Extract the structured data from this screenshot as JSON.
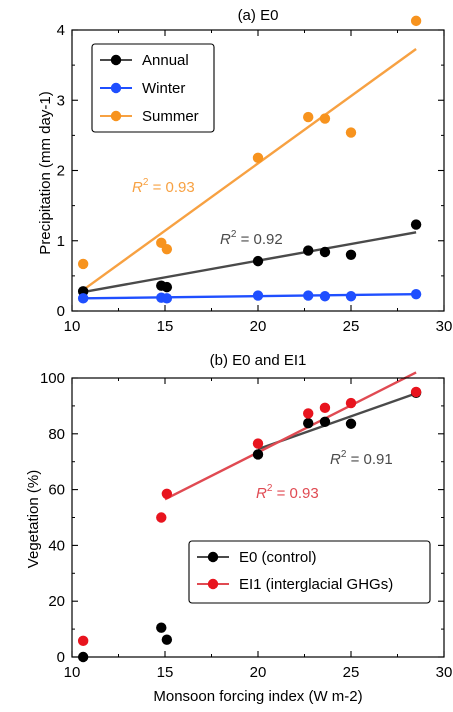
{
  "chart_data": [
    {
      "type": "scatter",
      "title": "(a) E0",
      "xlabel": "",
      "ylabel": "Precipitation (mm day-1)",
      "xlim": [
        10,
        30
      ],
      "ylim": [
        0,
        4
      ],
      "xticks": [
        10,
        15,
        20,
        25,
        30
      ],
      "yticks": [
        0,
        1,
        2,
        3,
        4
      ],
      "legend_position": "top-left",
      "series": [
        {
          "name": "Annual",
          "color": "#000000",
          "line_color": "#4a4a4a",
          "x": [
            10.6,
            14.8,
            15.1,
            20,
            22.7,
            23.6,
            25,
            28.5
          ],
          "y": [
            0.28,
            0.36,
            0.34,
            0.71,
            0.86,
            0.84,
            0.8,
            1.23
          ],
          "fit": [
            [
              10.6,
              0.27
            ],
            [
              28.5,
              1.12
            ]
          ],
          "r2_label": "R",
          "r2_value": " = 0.92"
        },
        {
          "name": "Winter",
          "color": "#1f4fff",
          "line_color": "#1f4fff",
          "x": [
            10.6,
            14.8,
            15.1,
            20,
            22.7,
            23.6,
            25,
            28.5
          ],
          "y": [
            0.18,
            0.19,
            0.18,
            0.22,
            0.22,
            0.21,
            0.21,
            0.24
          ],
          "fit": [
            [
              10.6,
              0.18
            ],
            [
              28.5,
              0.24
            ]
          ]
        },
        {
          "name": "Summer",
          "color": "#f7931e",
          "line_color": "#f7a142",
          "x": [
            10.6,
            14.8,
            15.1,
            20,
            22.7,
            23.6,
            25,
            28.5
          ],
          "y": [
            0.67,
            0.97,
            0.88,
            2.18,
            2.76,
            2.74,
            2.54,
            4.13
          ],
          "fit": [
            [
              10.6,
              0.3
            ],
            [
              28.5,
              3.73
            ]
          ],
          "r2_label": "R",
          "r2_value": " = 0.93"
        }
      ]
    },
    {
      "type": "scatter",
      "title": "(b) E0 and EI1",
      "xlabel": "Monsoon forcing index (W m-2)",
      "ylabel": "Vegetation (%)",
      "xlim": [
        10,
        30
      ],
      "ylim": [
        0,
        100
      ],
      "xticks": [
        10,
        15,
        20,
        25,
        30
      ],
      "yticks": [
        0,
        20,
        40,
        60,
        80,
        100
      ],
      "legend_position": "bottom-right",
      "series": [
        {
          "name": "E0 (control)",
          "color": "#000000",
          "line_color": "#4a4a4a",
          "x": [
            10.6,
            14.8,
            15.1,
            20,
            22.7,
            23.6,
            25,
            28.5
          ],
          "y": [
            0,
            10.5,
            6.2,
            72.6,
            83.8,
            84.3,
            83.6,
            94.7
          ],
          "fit": [
            [
              20,
              74.5
            ],
            [
              28.5,
              94.5
            ]
          ],
          "r2_label": "R",
          "r2_value": " = 0.91"
        },
        {
          "name": "EI1 (interglacial GHGs)",
          "color": "#e8141e",
          "line_color": "#e04a52",
          "x": [
            10.6,
            14.8,
            15.1,
            20,
            22.7,
            23.6,
            25,
            28.5
          ],
          "y": [
            5.8,
            50,
            58.5,
            76.5,
            87.3,
            89.3,
            91,
            95
          ],
          "fit": [
            [
              15,
              56.5
            ],
            [
              28.5,
              102
            ]
          ],
          "r2_label": "R",
          "r2_value": " = 0.93"
        }
      ]
    }
  ]
}
